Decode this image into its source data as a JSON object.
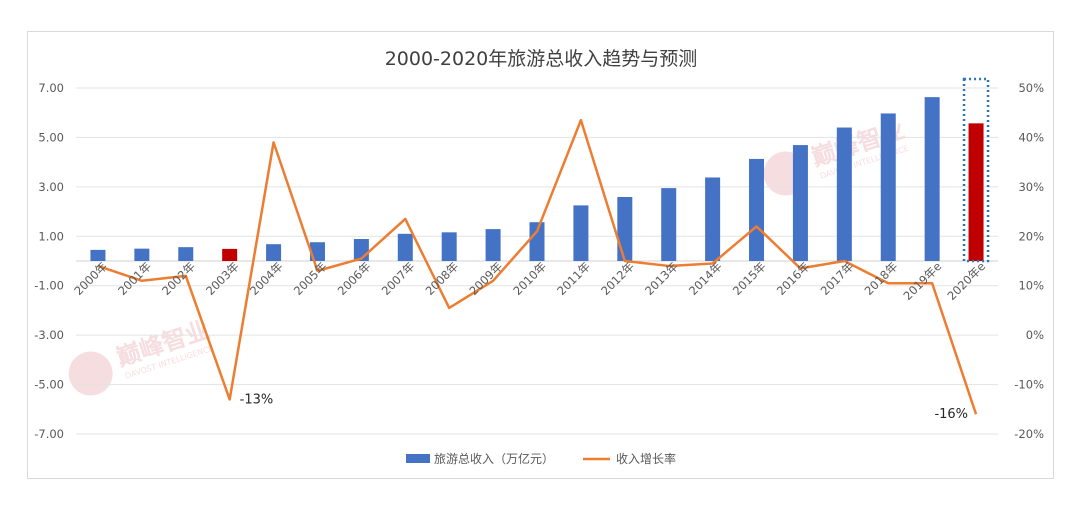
{
  "chart_data": {
    "type": "bar",
    "title": "2000-2020年旅游总收入趋势与预测",
    "categories": [
      "2000年",
      "2001年",
      "2002年",
      "2003年",
      "2004年",
      "2005年",
      "2006年",
      "2007年",
      "2008年",
      "2009年",
      "2010年",
      "2011年",
      "2012年",
      "2013年",
      "2014年",
      "2015年",
      "2016年",
      "2017年",
      "2018年",
      "2019年e",
      "2020年e"
    ],
    "y_left": {
      "ylim": [
        -7,
        7
      ],
      "ticks": [
        "7.00",
        "5.00",
        "3.00",
        "1.00",
        "-1.00",
        "-3.00",
        "-5.00",
        "-7.00"
      ]
    },
    "y_right": {
      "ylim": [
        -0.2,
        0.5
      ],
      "ticks": [
        "50%",
        "40%",
        "30%",
        "20%",
        "10%",
        "0%",
        "-10%",
        "-20%"
      ]
    },
    "series": [
      {
        "name": "旅游总收入（万亿元）",
        "type": "bar",
        "axis": "left",
        "color": "#4472c4",
        "values": [
          0.45,
          0.5,
          0.56,
          0.49,
          0.68,
          0.76,
          0.89,
          1.1,
          1.16,
          1.29,
          1.57,
          2.25,
          2.59,
          2.95,
          3.38,
          4.13,
          4.69,
          5.4,
          5.97,
          6.63,
          5.57
        ]
      },
      {
        "name": "收入增长率",
        "type": "line",
        "axis": "right",
        "color": "#ed7d31",
        "values": [
          0.14,
          0.11,
          0.12,
          -0.13,
          0.39,
          0.13,
          0.155,
          0.235,
          0.055,
          0.11,
          0.21,
          0.435,
          0.15,
          0.14,
          0.145,
          0.22,
          0.135,
          0.15,
          0.105,
          0.105,
          -0.16
        ]
      }
    ],
    "highlight_bars": {
      "indices": [
        3,
        20
      ],
      "color": "#c00000"
    },
    "forecast_box_index": 20,
    "annotations": [
      {
        "index": 3,
        "text": "-13%"
      },
      {
        "index": 20,
        "text": "-16%"
      }
    ],
    "legend_placement": "bottom",
    "grid": true
  },
  "watermark": {
    "text": "巅峰智业",
    "subtext": "DAVOST INTELLIGENCE",
    "color": "#e8a0a8"
  }
}
